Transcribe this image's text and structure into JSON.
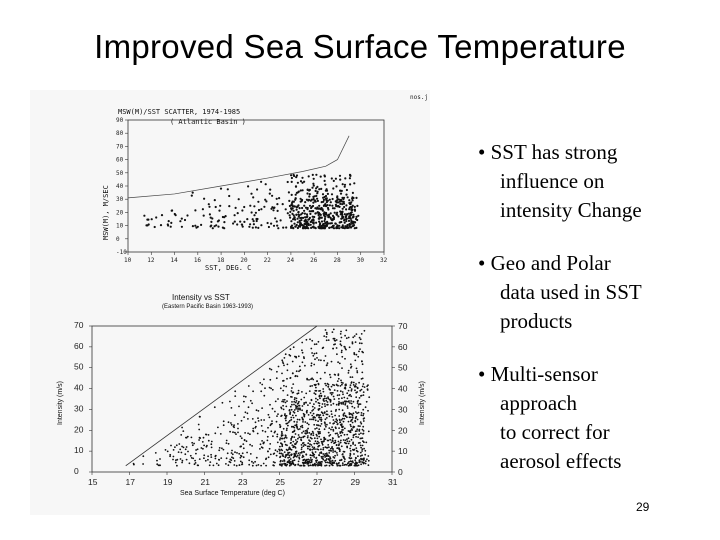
{
  "slide": {
    "title": "Improved Sea Surface Temperature",
    "page_number": "29",
    "corner_note": "nos.j",
    "bullets": [
      {
        "lines": [
          "• SST has strong",
          "influence on",
          "intensity Change"
        ]
      },
      {
        "lines": [
          "• Geo and Polar",
          "data used in SST",
          "products"
        ]
      },
      {
        "lines": [
          "• Multi-sensor",
          "approach",
          "to correct for",
          "aerosol effects"
        ]
      }
    ]
  },
  "chart_data": [
    {
      "type": "scatter",
      "title": "MSW(M)/SST SCATTER, 1974-1985",
      "subtitle": "( Atlantic Basin )",
      "xlabel": "SST, DEG. C",
      "ylabel": "MSW(M), M/SEC",
      "xlim": [
        10,
        32
      ],
      "ylim": [
        -10,
        90
      ],
      "xticks": [
        10,
        12,
        14,
        16,
        18,
        20,
        22,
        24,
        26,
        28,
        30,
        32
      ],
      "yticks": [
        -10,
        0,
        10,
        20,
        30,
        40,
        50,
        60,
        70,
        80,
        90
      ],
      "envelope": {
        "x": [
          10,
          14,
          18,
          22,
          25,
          27,
          28,
          29
        ],
        "y": [
          31,
          34,
          40,
          46,
          51,
          55,
          60,
          78
        ]
      },
      "cloud": {
        "x_range": [
          11,
          29.8
        ],
        "y_range": [
          8,
          50
        ],
        "dense_x": [
          24,
          29.5
        ]
      }
    },
    {
      "type": "scatter",
      "title": "Intensity vs SST",
      "subtitle": "(Eastern Pacific Basin 1963-1993)",
      "xlabel": "Sea Surface Temperature (deg C)",
      "ylabel": "Intensity (m/s)",
      "xlim": [
        15,
        31
      ],
      "ylim": [
        0,
        70
      ],
      "xticks": [
        15,
        17,
        19,
        21,
        23,
        25,
        27,
        29,
        31
      ],
      "yticks": [
        0,
        10,
        20,
        30,
        40,
        50,
        60,
        70
      ],
      "envelope": {
        "x": [
          16.8,
          27
        ],
        "y": [
          3,
          70
        ]
      },
      "cloud": {
        "x_range": [
          17,
          29.8
        ],
        "y_range": [
          3,
          70
        ],
        "dense_x": [
          25,
          29.5
        ]
      }
    }
  ]
}
